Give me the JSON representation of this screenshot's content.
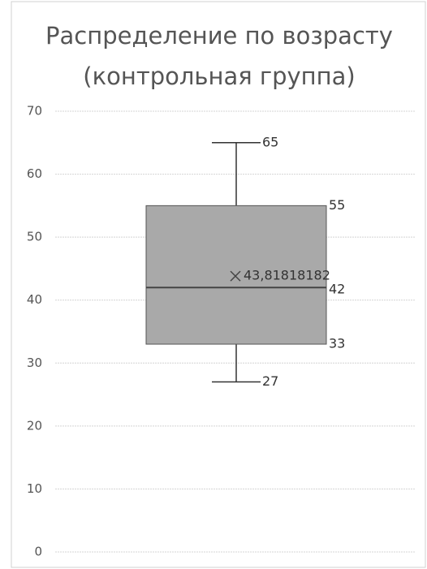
{
  "chart_data": {
    "type": "box",
    "title": [
      "Распределение по возрасту",
      "(контрольная группа)"
    ],
    "series": [
      {
        "min": 27,
        "q1": 33,
        "median": 42,
        "q3": 55,
        "max": 65,
        "mean": 43.81818182,
        "value_labels": {
          "mean": "43,81818182"
        },
        "color": "#a9a9a9"
      }
    ],
    "ylim": [
      0,
      70
    ],
    "yticks": [
      0,
      10,
      20,
      30,
      40,
      50,
      60,
      70
    ],
    "grid": true
  }
}
